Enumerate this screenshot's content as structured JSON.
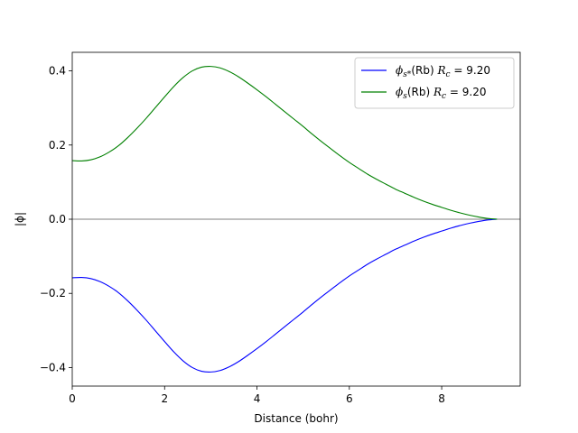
{
  "chart_data": {
    "type": "line",
    "title": "",
    "xlabel": "Distance (bohr)",
    "ylabel": "|ϕ|",
    "xlim": [
      0,
      9.7
    ],
    "ylim": [
      -0.45,
      0.45
    ],
    "xticks": [
      0,
      2,
      4,
      6,
      8
    ],
    "yticks": [
      -0.4,
      -0.2,
      0.0,
      0.2,
      0.4
    ],
    "xtick_labels": [
      "0",
      "2",
      "4",
      "6",
      "8"
    ],
    "ytick_labels": [
      "−0.4",
      "−0.2",
      "0.0",
      "0.2",
      "0.4"
    ],
    "grid": false,
    "legend_position": "top-right",
    "zero_line": true,
    "series": [
      {
        "name": "ϕs*(Rb)  Rc = 9.20",
        "legend": {
          "sym": "ϕ",
          "sub": "s*",
          "label": "(Rb)",
          "rc_sym": "R",
          "rc_sub": "c",
          "rc_val": " = 9.20"
        },
        "color": "#0000ff",
        "x": [
          0.0,
          0.2,
          0.4,
          0.6,
          0.8,
          1.0,
          1.2,
          1.4,
          1.6,
          1.8,
          2.0,
          2.2,
          2.4,
          2.6,
          2.8,
          3.0,
          3.2,
          3.4,
          3.6,
          3.8,
          4.0,
          4.2,
          4.4,
          4.6,
          4.8,
          5.0,
          5.2,
          5.4,
          5.6,
          5.8,
          6.0,
          6.2,
          6.4,
          6.6,
          6.8,
          7.0,
          7.2,
          7.4,
          7.6,
          7.8,
          8.0,
          8.2,
          8.4,
          8.6,
          8.8,
          9.0,
          9.2
        ],
        "values": [
          -0.158,
          -0.157,
          -0.16,
          -0.168,
          -0.181,
          -0.198,
          -0.22,
          -0.245,
          -0.272,
          -0.301,
          -0.33,
          -0.358,
          -0.382,
          -0.4,
          -0.41,
          -0.412,
          -0.408,
          -0.398,
          -0.384,
          -0.367,
          -0.349,
          -0.33,
          -0.31,
          -0.29,
          -0.27,
          -0.25,
          -0.229,
          -0.209,
          -0.19,
          -0.171,
          -0.153,
          -0.137,
          -0.121,
          -0.107,
          -0.094,
          -0.081,
          -0.07,
          -0.059,
          -0.049,
          -0.04,
          -0.032,
          -0.024,
          -0.017,
          -0.011,
          -0.006,
          -0.002,
          0.0
        ]
      },
      {
        "name": "ϕs(Rb)  Rc = 9.20",
        "legend": {
          "sym": "ϕ",
          "sub": "s",
          "label": "(Rb)",
          "rc_sym": "R",
          "rc_sub": "c",
          "rc_val": " = 9.20"
        },
        "color": "#008000",
        "x": [
          0.0,
          0.2,
          0.4,
          0.6,
          0.8,
          1.0,
          1.2,
          1.4,
          1.6,
          1.8,
          2.0,
          2.2,
          2.4,
          2.6,
          2.8,
          3.0,
          3.2,
          3.4,
          3.6,
          3.8,
          4.0,
          4.2,
          4.4,
          4.6,
          4.8,
          5.0,
          5.2,
          5.4,
          5.6,
          5.8,
          6.0,
          6.2,
          6.4,
          6.6,
          6.8,
          7.0,
          7.2,
          7.4,
          7.6,
          7.8,
          8.0,
          8.2,
          8.4,
          8.6,
          8.8,
          9.0,
          9.2
        ],
        "values": [
          0.158,
          0.157,
          0.16,
          0.168,
          0.181,
          0.198,
          0.22,
          0.245,
          0.272,
          0.301,
          0.33,
          0.358,
          0.382,
          0.4,
          0.41,
          0.412,
          0.408,
          0.398,
          0.384,
          0.367,
          0.349,
          0.33,
          0.31,
          0.29,
          0.27,
          0.25,
          0.229,
          0.209,
          0.19,
          0.171,
          0.153,
          0.137,
          0.121,
          0.107,
          0.094,
          0.081,
          0.07,
          0.059,
          0.049,
          0.04,
          0.032,
          0.024,
          0.017,
          0.011,
          0.006,
          0.002,
          0.0
        ]
      }
    ]
  }
}
